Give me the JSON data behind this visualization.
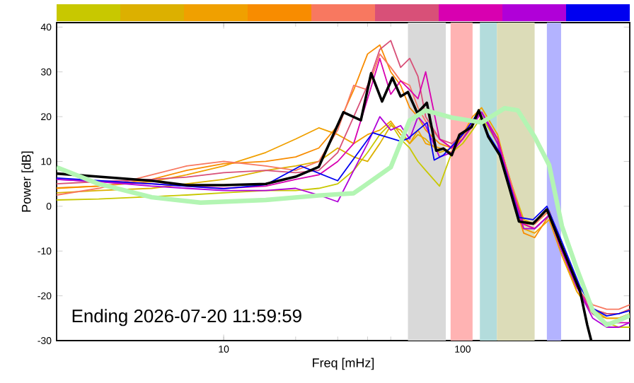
{
  "chart_data": {
    "type": "line",
    "xlabel": "Freq [mHz]",
    "ylabel": "Power [dB]",
    "log": "x",
    "xlim": [
      2,
      500
    ],
    "ylim": [
      -30,
      41
    ],
    "xticks": [
      10,
      100
    ],
    "yticks": [
      -30,
      -20,
      -10,
      0,
      10,
      20,
      30,
      40
    ],
    "annotations": [
      "Ending 2026-07-20 11:59:59"
    ],
    "bands": [
      {
        "axis": "x",
        "from": 59,
        "to": 85,
        "color": "#d9d9d9"
      },
      {
        "axis": "x",
        "from": 89,
        "to": 110,
        "color": "#ffb3b3"
      },
      {
        "axis": "x",
        "from": 118,
        "to": 139,
        "color": "#b3dcdc"
      },
      {
        "axis": "x",
        "from": 139,
        "to": 200,
        "color": "#dcdcb8"
      },
      {
        "axis": "x",
        "from": 225,
        "to": 258,
        "color": "#b3b3ff"
      }
    ],
    "x": [
      2,
      3,
      5,
      7,
      10,
      15,
      20,
      25,
      30,
      35,
      40,
      45,
      50,
      55,
      60,
      65,
      70,
      80,
      90,
      100,
      110,
      120,
      140,
      160,
      180,
      200,
      230,
      260,
      300,
      350,
      400,
      450,
      500
    ],
    "series": [
      {
        "color": "#c8c800",
        "values": [
          1.4,
          1.6,
          null,
          2.5,
          3,
          3.5,
          3.5,
          4,
          5,
          8,
          12,
          16,
          18.5,
          15,
          13,
          10,
          8,
          4.5,
          12,
          14,
          17,
          20,
          14,
          4,
          -4,
          -5,
          -2,
          -10,
          -19,
          -24,
          -26,
          -27,
          -27
        ]
      },
      {
        "color": "#dcb000",
        "values": [
          3,
          3.5,
          4,
          5,
          6,
          8,
          9,
          10,
          13,
          11,
          10,
          14,
          18,
          17,
          14,
          16,
          15,
          12,
          13,
          15,
          18,
          21,
          15,
          5,
          -3,
          -4,
          -1,
          -9,
          -18,
          -23,
          -25,
          -25,
          -24
        ]
      },
      {
        "color": "#f0a000",
        "values": [
          4,
          4.5,
          5.5,
          7,
          9,
          12,
          15,
          17.5,
          16,
          14,
          16,
          17,
          19,
          16,
          14,
          17,
          14,
          13,
          12,
          16,
          20,
          22,
          16,
          4,
          -5,
          -6,
          -3,
          -11,
          -19,
          -24,
          -25,
          -25,
          -24
        ]
      },
      {
        "color": "#f88c00",
        "values": [
          4.1,
          4.5,
          6,
          8,
          9.5,
          10,
          11,
          13,
          18,
          26,
          34,
          36,
          30,
          27,
          22,
          20,
          17,
          14,
          13,
          15,
          19,
          21,
          14,
          3,
          -6,
          -7,
          -2,
          -10,
          -18,
          -23,
          -24,
          -24,
          -23
        ]
      },
      {
        "color": "#f87860",
        "values": [
          2.5,
          4,
          7,
          9,
          10,
          9,
          8,
          10,
          17,
          27,
          26,
          34,
          31,
          28,
          27,
          22,
          19,
          15,
          13,
          16,
          19,
          21,
          15,
          5,
          -4,
          -4,
          -1,
          -9,
          -17,
          -22,
          -23,
          -23,
          -22
        ]
      },
      {
        "color": "#d85078",
        "values": [
          5,
          5.5,
          6,
          6.5,
          7.5,
          8,
          7.5,
          8,
          12,
          20,
          27,
          35,
          37,
          31,
          33,
          29,
          20,
          15,
          14,
          16,
          19,
          21,
          15,
          4,
          -4,
          -5,
          -2,
          -10,
          -18,
          -23,
          -24,
          -24,
          -23
        ]
      },
      {
        "color": "#d800b0",
        "values": [
          6,
          5.5,
          5,
          4.5,
          4,
          4.5,
          6,
          7,
          10,
          14,
          24,
          33,
          25,
          28,
          26,
          24,
          30,
          15,
          13,
          16,
          19,
          21,
          15,
          4,
          -4,
          -5,
          -2,
          -10,
          -18,
          -24,
          -26,
          -26,
          -26
        ]
      },
      {
        "color": "#b000d8",
        "values": [
          6,
          5.5,
          4.5,
          4,
          3.5,
          3.5,
          4,
          2.5,
          1,
          8,
          14,
          20,
          17,
          18,
          15,
          20,
          18,
          11,
          12,
          15,
          18,
          21,
          14,
          3,
          -5,
          -5,
          -2,
          -10,
          -18,
          -25,
          -27,
          -27,
          -26
        ]
      },
      {
        "color": "#0000f0",
        "x": [
          2,
          5,
          10,
          15,
          21,
          30,
          42,
          55,
          59,
          71,
          76,
          83,
          100,
          109,
          117,
          128,
          143,
          157,
          172,
          197,
          225,
          258,
          310,
          350,
          400,
          450,
          500
        ],
        "values": [
          6.3,
          5,
          3.9,
          4.8,
          9,
          5.7,
          16.4,
          14.5,
          15.1,
          18.7,
          10.3,
          11.4,
          16,
          18.7,
          21.4,
          16,
          12,
          5,
          -2.5,
          -3,
          0,
          -7.5,
          -18,
          -22.8,
          -24.5,
          -24,
          -23.3
        ]
      },
      {
        "color": "#000000",
        "x": [
          2,
          3,
          5,
          7,
          10,
          15,
          20,
          25,
          31.7,
          37.5,
          41.4,
          46,
          50.8,
          55,
          59,
          64.6,
          70.8,
          77.5,
          83,
          90,
          97,
          109,
          116.7,
          128,
          143,
          157,
          172,
          197,
          225,
          258,
          310,
          332,
          345
        ],
        "values": [
          7.3,
          6.6,
          5.7,
          4.7,
          4.7,
          5,
          6.6,
          8.8,
          21,
          19.2,
          29.7,
          23.4,
          28.7,
          24.5,
          25.5,
          20.8,
          23.1,
          12.4,
          12.9,
          11.4,
          16,
          17.7,
          21.4,
          15.5,
          11.4,
          4,
          -3.4,
          -3.9,
          -0.7,
          -8.6,
          -19,
          -26.5,
          -30
        ]
      },
      {
        "color": "#b3f5b3",
        "x": [
          2,
          3,
          5,
          8,
          15,
          25,
          35,
          50,
          60,
          70,
          90,
          120,
          150,
          170,
          200,
          230,
          260,
          300,
          350,
          400,
          450,
          500
        ],
        "values": [
          8.7,
          5,
          2,
          0.8,
          1.4,
          2.4,
          2.9,
          8.7,
          19.2,
          21.4,
          19.8,
          18.7,
          21.9,
          21.4,
          15.5,
          9.2,
          -4.4,
          -13.9,
          -23.3,
          -26.5,
          -25.5,
          -24.4
        ]
      }
    ]
  }
}
